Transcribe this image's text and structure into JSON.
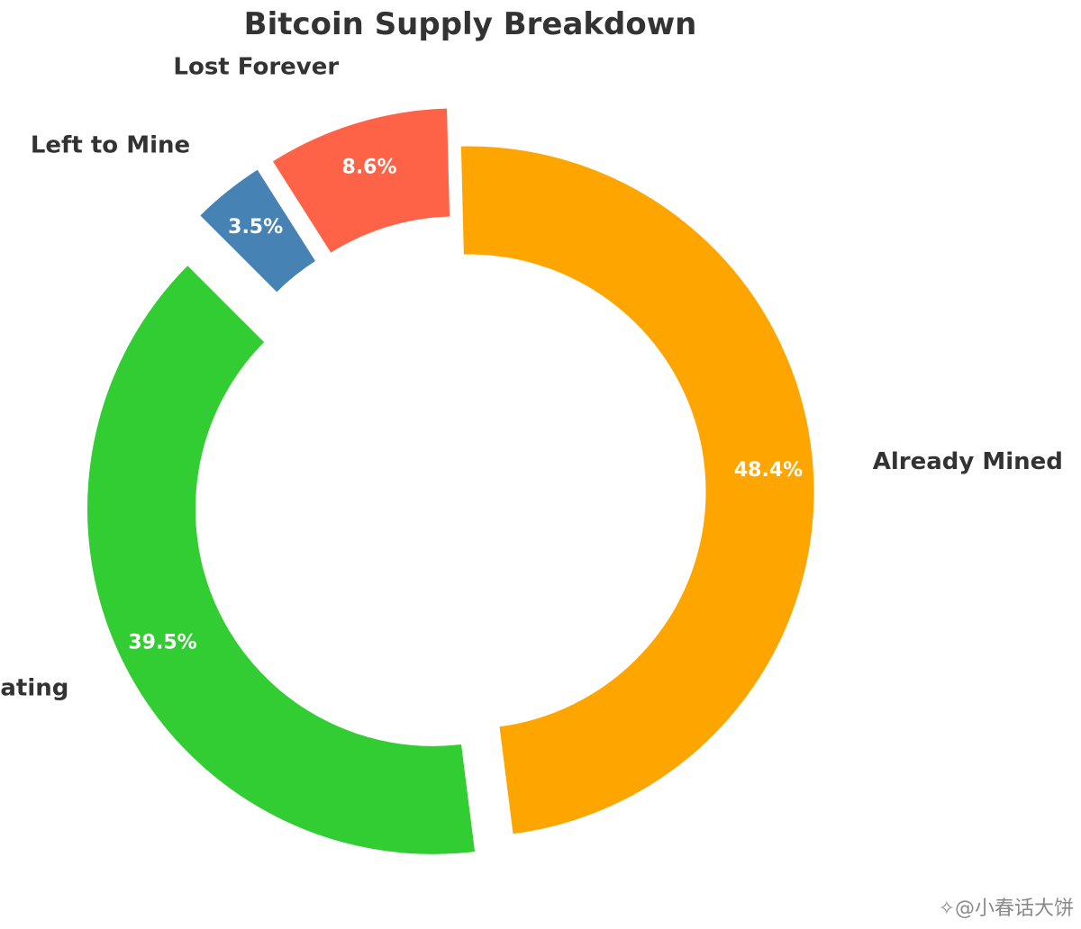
{
  "chart_data": {
    "type": "pie",
    "style": "donut",
    "title": "Bitcoin Supply Breakdown",
    "start_angle_deg": 135,
    "direction": "counterclockwise",
    "slices": [
      {
        "label": "Circulating",
        "pct_label": "39.5%",
        "value": 39.5,
        "color": "#32CD32",
        "exploded": true
      },
      {
        "label": "Already Mined",
        "pct_label": "48.4%",
        "value": 48.4,
        "color": "#FFA500",
        "exploded": false
      },
      {
        "label": "Lost Forever",
        "pct_label": "8.6%",
        "value": 8.6,
        "color": "#FF6347",
        "exploded": true
      },
      {
        "label": "Left to Mine",
        "pct_label": "3.5%",
        "value": 3.5,
        "color": "#4682B4",
        "exploded": true
      }
    ]
  },
  "watermark": "✧@小春话大饼"
}
